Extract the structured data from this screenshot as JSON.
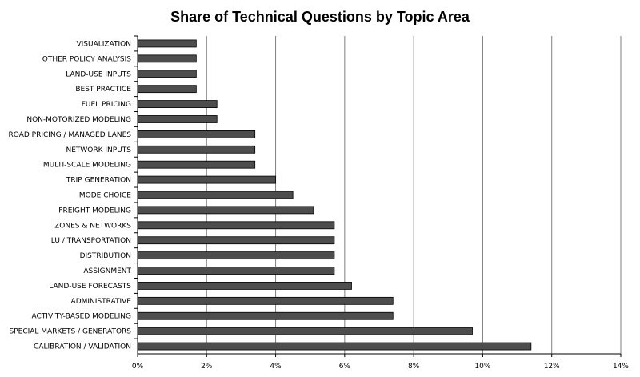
{
  "chart_data": {
    "type": "bar",
    "orientation": "horizontal",
    "title": "Share of Technical Questions by Topic Area",
    "xlabel": "",
    "ylabel": "",
    "xlim": [
      0,
      14
    ],
    "x_ticks": [
      "0%",
      "2%",
      "4%",
      "6%",
      "8%",
      "10%",
      "12%",
      "14%"
    ],
    "grid": "vertical",
    "legend": "none",
    "bar_color": "#4d4d4d",
    "grid_color": "#7f7f7f",
    "categories": [
      "VISUALIZATION",
      "OTHER POLICY ANALYSIS",
      "LAND-USE INPUTS",
      "BEST PRACTICE",
      "FUEL PRICING",
      "NON-MOTORIZED MODELING",
      "ROAD PRICING / MANAGED LANES",
      "NETWORK INPUTS",
      "MULTI-SCALE MODELING",
      "TRIP GENERATION",
      "MODE CHOICE",
      "FREIGHT MODELING",
      "ZONES & NETWORKS",
      "LU / TRANSPORTATION",
      "DISTRIBUTION",
      "ASSIGNMENT",
      "LAND-USE FORECASTS",
      "ADMINISTRATIVE",
      "ACTIVITY-BASED MODELING",
      "SPECIAL MARKETS / GENERATORS",
      "CALIBRATION / VALIDATION"
    ],
    "values": [
      1.7,
      1.7,
      1.7,
      1.7,
      2.3,
      2.3,
      3.4,
      3.4,
      3.4,
      4.0,
      4.5,
      5.1,
      5.7,
      5.7,
      5.7,
      5.7,
      6.2,
      7.4,
      7.4,
      9.7,
      11.4
    ]
  }
}
